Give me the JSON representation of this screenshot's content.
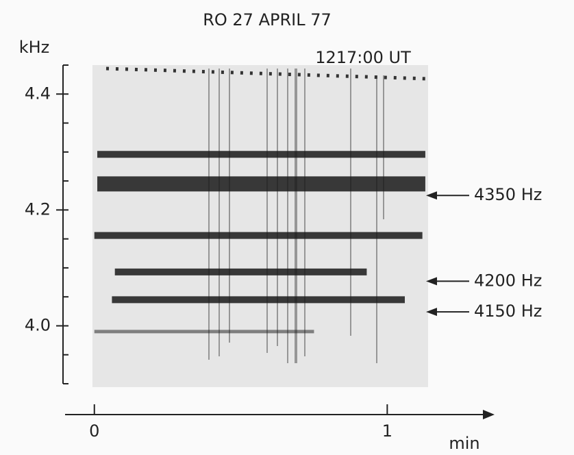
{
  "chart_data": {
    "type": "spectrogram",
    "title": "RO  27 APRIL 77",
    "subtitle": "1217:00 UT",
    "ylabel": "kHz",
    "xlabel": "min",
    "xlim": [
      -0.1,
      1.35
    ],
    "xticks": [
      0,
      1
    ],
    "ylim": [
      3.9,
      4.45
    ],
    "yticks": [
      {
        "value": 4,
        "label": "4.0"
      },
      4.2,
      4.4
    ],
    "yticks_minor": [
      3.9,
      3.95,
      4.05,
      4.1,
      4.15,
      4.25,
      4.3,
      4.35,
      4.45
    ],
    "color": "#1a1a1a",
    "bands": [
      {
        "y": 4.296,
        "x": [
          0.01,
          1.13
        ]
      },
      {
        "y": 4.245,
        "x": [
          0.01,
          1.13
        ]
      },
      {
        "y": 4.156,
        "x": [
          0.0,
          1.12
        ]
      },
      {
        "y": 4.093,
        "x": [
          0.07,
          0.93
        ]
      },
      {
        "y": 4.045,
        "x": [
          0.06,
          1.06
        ]
      },
      {
        "y": 3.99,
        "x": [
          0.0,
          0.75
        ]
      }
    ],
    "annotations": [
      {
        "text": "4350 Hz",
        "y": 4.225
      },
      {
        "text": "4200 Hz",
        "y": 4.077
      },
      {
        "text": "4150 Hz",
        "y": 4.024
      }
    ]
  }
}
